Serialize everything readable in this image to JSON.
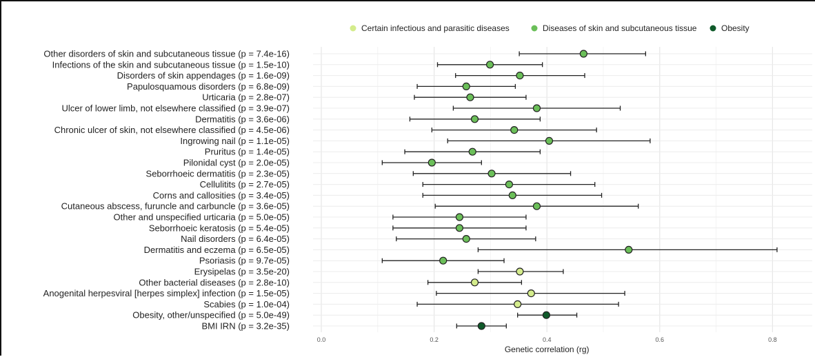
{
  "chart_data": {
    "type": "scatter",
    "subtype": "forest-plot",
    "title": "",
    "xlabel": "Genetic correlation (rg)",
    "ylabel": "",
    "xlim": [
      0,
      0.85
    ],
    "xticks": [
      "0.0",
      "0.2",
      "0.4",
      "0.6",
      "0.8"
    ],
    "grid": true,
    "legend_position": "top",
    "legend": [
      {
        "name": "Certain infectious and parasitic diseases",
        "color": "#d4ec8c"
      },
      {
        "name": "Diseases of skin and subcutaneous tissue",
        "color": "#6bbf59"
      },
      {
        "name": "Obesity",
        "color": "#0f5a2a"
      }
    ],
    "rows": [
      {
        "label": "Other disorders of skin and subcutaneous tissue (p = 7.4e-16)",
        "category": "Diseases of skin and subcutaneous tissue",
        "rg": 0.465,
        "lower": 0.351,
        "upper": 0.575
      },
      {
        "label": "Infections of the skin and subcutaneous tissue (p = 1.5e-10)",
        "category": "Diseases of skin and subcutaneous tissue",
        "rg": 0.299,
        "lower": 0.206,
        "upper": 0.392
      },
      {
        "label": "Disorders of skin appendages (p = 1.6e-09)",
        "category": "Diseases of skin and subcutaneous tissue",
        "rg": 0.352,
        "lower": 0.238,
        "upper": 0.467
      },
      {
        "label": "Papulosquamous disorders (p = 6.8e-09)",
        "category": "Diseases of skin and subcutaneous tissue",
        "rg": 0.257,
        "lower": 0.17,
        "upper": 0.344
      },
      {
        "label": "Urticaria (p = 2.8e-07)",
        "category": "Diseases of skin and subcutaneous tissue",
        "rg": 0.264,
        "lower": 0.165,
        "upper": 0.363
      },
      {
        "label": "Ulcer of lower limb, not elsewhere classified (p = 3.9e-07)",
        "category": "Diseases of skin and subcutaneous tissue",
        "rg": 0.382,
        "lower": 0.234,
        "upper": 0.53
      },
      {
        "label": "Dermatitis (p = 3.6e-06)",
        "category": "Diseases of skin and subcutaneous tissue",
        "rg": 0.272,
        "lower": 0.157,
        "upper": 0.388
      },
      {
        "label": "Chronic ulcer of skin, not elsewhere classified (p = 4.5e-06)",
        "category": "Diseases of skin and subcutaneous tissue",
        "rg": 0.342,
        "lower": 0.196,
        "upper": 0.488
      },
      {
        "label": "Ingrowing nail (p = 1.1e-05)",
        "category": "Diseases of skin and subcutaneous tissue",
        "rg": 0.404,
        "lower": 0.224,
        "upper": 0.583
      },
      {
        "label": "Pruritus (p = 1.4e-05)",
        "category": "Diseases of skin and subcutaneous tissue",
        "rg": 0.268,
        "lower": 0.148,
        "upper": 0.388
      },
      {
        "label": "Pilonidal cyst (p = 2.0e-05)",
        "category": "Diseases of skin and subcutaneous tissue",
        "rg": 0.196,
        "lower": 0.108,
        "upper": 0.284
      },
      {
        "label": "Seborrhoeic dermatitis (p = 2.3e-05)",
        "category": "Diseases of skin and subcutaneous tissue",
        "rg": 0.302,
        "lower": 0.163,
        "upper": 0.442
      },
      {
        "label": "Cellulitits (p = 2.7e-05)",
        "category": "Diseases of skin and subcutaneous tissue",
        "rg": 0.333,
        "lower": 0.18,
        "upper": 0.485
      },
      {
        "label": "Corns and callosities (p = 3.4e-05)",
        "category": "Diseases of skin and subcutaneous tissue",
        "rg": 0.339,
        "lower": 0.18,
        "upper": 0.497
      },
      {
        "label": "Cutaneous abscess, furuncle and carbuncle (p = 3.6e-05)",
        "category": "Diseases of skin and subcutaneous tissue",
        "rg": 0.382,
        "lower": 0.202,
        "upper": 0.562
      },
      {
        "label": "Other and unspecified urticaria (p = 5.0e-05)",
        "category": "Diseases of skin and subcutaneous tissue",
        "rg": 0.245,
        "lower": 0.127,
        "upper": 0.363
      },
      {
        "label": "Seborrhoeic keratosis (p = 5.4e-05)",
        "category": "Diseases of skin and subcutaneous tissue",
        "rg": 0.245,
        "lower": 0.127,
        "upper": 0.363
      },
      {
        "label": "Nail disorders (p = 6.4e-05)",
        "category": "Diseases of skin and subcutaneous tissue",
        "rg": 0.257,
        "lower": 0.133,
        "upper": 0.38
      },
      {
        "label": "Dermatitis and eczema (p = 6.5e-05)",
        "category": "Diseases of skin and subcutaneous tissue",
        "rg": 0.545,
        "lower": 0.278,
        "upper": 0.808
      },
      {
        "label": "Psoriasis (p = 9.7e-05)",
        "category": "Diseases of skin and subcutaneous tissue",
        "rg": 0.216,
        "lower": 0.108,
        "upper": 0.324
      },
      {
        "label": "Erysipelas (p = 3.5e-20)",
        "category": "Certain infectious and parasitic diseases",
        "rg": 0.352,
        "lower": 0.278,
        "upper": 0.429
      },
      {
        "label": "Other bacterial diseases (p = 2.8e-10)",
        "category": "Certain infectious and parasitic diseases",
        "rg": 0.272,
        "lower": 0.189,
        "upper": 0.355
      },
      {
        "label": "Anogenital herpesviral [herpes simplex] infection (p = 1.5e-05)",
        "category": "Certain infectious and parasitic diseases",
        "rg": 0.372,
        "lower": 0.204,
        "upper": 0.538
      },
      {
        "label": "Scabies (p = 1.0e-04)",
        "category": "Certain infectious and parasitic diseases",
        "rg": 0.348,
        "lower": 0.17,
        "upper": 0.527
      },
      {
        "label": "Obesity, other/unspecified (p = 5.0e-49)",
        "category": "Obesity",
        "rg": 0.399,
        "lower": 0.348,
        "upper": 0.453
      },
      {
        "label": "BMI IRN (p = 3.2e-35)",
        "category": "Obesity",
        "rg": 0.284,
        "lower": 0.24,
        "upper": 0.328
      }
    ]
  }
}
